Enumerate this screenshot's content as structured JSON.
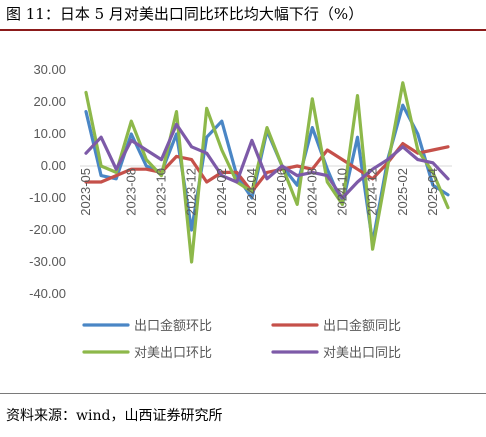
{
  "figure": {
    "title": "图 11：日本 5 月对美出口同比环比均大幅下行（%）",
    "source": "资料来源：wind，山西证券研究所"
  },
  "chart_data": {
    "type": "line",
    "ylim": [
      -40,
      30
    ],
    "y_ticks": [
      "30.00",
      "20.00",
      "10.00",
      "0.00",
      "-10.00",
      "-20.00",
      "-30.00",
      "-40.00"
    ],
    "x": [
      "2023-05",
      "2023-06",
      "2023-07",
      "2023-08",
      "2023-09",
      "2023-10",
      "2023-11",
      "2023-12",
      "2024-01",
      "2024-02",
      "2024-03",
      "2024-04",
      "2024-05",
      "2024-06",
      "2024-07",
      "2024-08",
      "2024-09",
      "2024-10",
      "2024-11",
      "2024-12",
      "2025-01",
      "2025-02",
      "2025-03",
      "2025-04",
      "2025-05"
    ],
    "x_tick_labels": [
      {
        "index": 0,
        "label": "2023-05"
      },
      {
        "index": 3,
        "label": "2023-08"
      },
      {
        "index": 5,
        "label": "2023-10"
      },
      {
        "index": 7,
        "label": "2023-12"
      },
      {
        "index": 9,
        "label": "2024-02"
      },
      {
        "index": 11,
        "label": "2024-04"
      },
      {
        "index": 13,
        "label": "2024-06"
      },
      {
        "index": 15,
        "label": "2024-08"
      },
      {
        "index": 17,
        "label": "2024-10"
      },
      {
        "index": 19,
        "label": "2024-12"
      },
      {
        "index": 21,
        "label": "2025-02"
      },
      {
        "index": 23,
        "label": "2025-04"
      }
    ],
    "series": [
      {
        "name": "出口金额环比",
        "color": "#4a86c5",
        "values": [
          17,
          -3,
          -4,
          10,
          0,
          -2,
          10,
          -20,
          9,
          14,
          -3,
          -10,
          11,
          0,
          -6,
          12,
          -1,
          -12,
          9,
          -24,
          2,
          19,
          10,
          -6,
          -9
        ]
      },
      {
        "name": "出口金额同比",
        "color": "#c5504a",
        "values": [
          -5,
          -5,
          -3,
          -1,
          -1,
          -2,
          3,
          2,
          -5,
          -2,
          -2,
          -8,
          -2,
          -1,
          0,
          -1,
          5,
          2,
          -1,
          -4,
          1,
          7,
          4,
          5,
          6
        ]
      },
      {
        "name": "对美出口环比",
        "color": "#8db84a",
        "values": [
          23,
          0,
          -2,
          14,
          2,
          -3,
          17,
          -30,
          18,
          5,
          -5,
          -8,
          12,
          0,
          -12,
          21,
          -5,
          -12,
          22,
          -26,
          0,
          26,
          5,
          -2,
          -13
        ]
      },
      {
        "name": "对美出口同比",
        "color": "#7d5aa8",
        "values": [
          4,
          9,
          -1,
          8,
          5,
          2,
          13,
          6,
          4,
          -3,
          -5,
          8,
          -4,
          0,
          -3,
          -2,
          -3,
          -10,
          -5,
          -1,
          2,
          6,
          2,
          1,
          -4
        ]
      }
    ],
    "legend_position": "bottom",
    "grid": false
  }
}
